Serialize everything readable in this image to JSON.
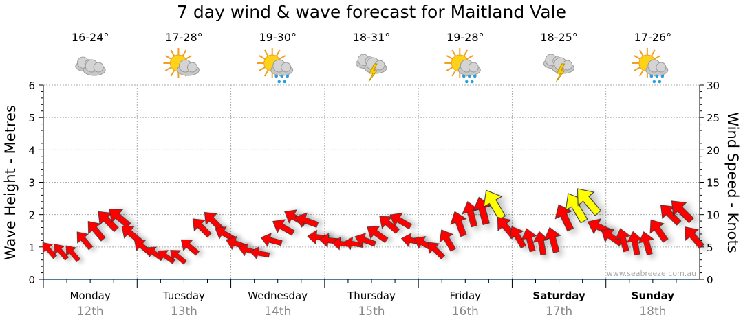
{
  "chart_data": {
    "type": "scatter",
    "title": "7 day wind & wave forecast for Maitland Vale",
    "ylabel": "Wave Height - Metres",
    "y2label": "Wind Speed - Knots",
    "ylim": [
      0,
      6
    ],
    "y2lim": [
      0,
      30
    ],
    "yticks": [
      "0",
      "1",
      "2",
      "3",
      "4",
      "5",
      "6"
    ],
    "y2ticks": [
      "0",
      "5",
      "10",
      "15",
      "20",
      "25",
      "30"
    ],
    "grid": true,
    "watermark": "www.seabreeze.com.au",
    "days": [
      {
        "name": "Monday",
        "date": "12th",
        "temp": "16-24°",
        "icon": "cloudy-icon",
        "bold": false
      },
      {
        "name": "Tuesday",
        "date": "13th",
        "temp": "17-28°",
        "icon": "partly-sunny-icon",
        "bold": false
      },
      {
        "name": "Wednesday",
        "date": "14th",
        "temp": "19-30°",
        "icon": "sun-showers-icon",
        "bold": false
      },
      {
        "name": "Thursday",
        "date": "15th",
        "temp": "18-31°",
        "icon": "thunderstorm-icon",
        "bold": false
      },
      {
        "name": "Friday",
        "date": "16th",
        "temp": "19-28°",
        "icon": "sun-showers-icon",
        "bold": false
      },
      {
        "name": "Saturday",
        "date": "17th",
        "temp": "18-25°",
        "icon": "thunderstorm-icon",
        "bold": true
      },
      {
        "name": "Sunday",
        "date": "18th",
        "temp": "17-26°",
        "icon": "sun-showers-icon",
        "bold": true
      }
    ],
    "series": [
      {
        "name": "wave_height_m",
        "step_hours": 3,
        "values": [
          0.9,
          0.85,
          0.8,
          1.2,
          1.5,
          1.8,
          1.9,
          1.4,
          1.0,
          0.8,
          0.7,
          0.7,
          1.0,
          1.6,
          1.8,
          1.4,
          1.1,
          0.9,
          0.8,
          1.2,
          1.6,
          1.9,
          1.8,
          1.3,
          1.2,
          1.1,
          1.1,
          1.2,
          1.4,
          1.7,
          1.8,
          1.2,
          1.1,
          0.9,
          1.2,
          1.7,
          2.0,
          2.1,
          2.3,
          1.6,
          1.3,
          1.2,
          1.1,
          1.2,
          1.9,
          2.2,
          2.4,
          1.6,
          1.3,
          1.2,
          1.1,
          1.1,
          1.5,
          2.0,
          2.1,
          1.3
        ]
      },
      {
        "name": "wind_knots",
        "values": [
          9,
          9,
          9,
          10,
          11,
          12,
          12,
          11,
          10,
          9,
          9,
          9,
          10,
          11,
          11,
          10,
          10,
          9,
          9,
          10,
          11,
          11,
          11,
          10,
          10,
          9,
          9,
          10,
          11,
          11,
          11,
          10,
          10,
          10,
          11,
          12,
          12,
          13,
          15,
          12,
          11,
          11,
          11,
          12,
          13,
          15,
          15,
          12,
          11,
          11,
          11,
          11,
          12,
          12,
          13,
          12
        ]
      },
      {
        "name": "wind_direction_deg",
        "values": [
          -40,
          -40,
          -40,
          -40,
          -40,
          -45,
          -50,
          -50,
          -50,
          -55,
          -55,
          -50,
          -50,
          -45,
          -45,
          -60,
          -70,
          -75,
          -80,
          -75,
          -60,
          -60,
          -70,
          -85,
          -85,
          -85,
          -80,
          -70,
          -55,
          -50,
          -60,
          -80,
          -60,
          -45,
          -30,
          -20,
          -15,
          -15,
          -30,
          -40,
          -30,
          -15,
          -10,
          -15,
          -25,
          -30,
          -40,
          -65,
          -55,
          -15,
          -10,
          -15,
          -35,
          -45,
          -45,
          -40
        ]
      }
    ]
  }
}
